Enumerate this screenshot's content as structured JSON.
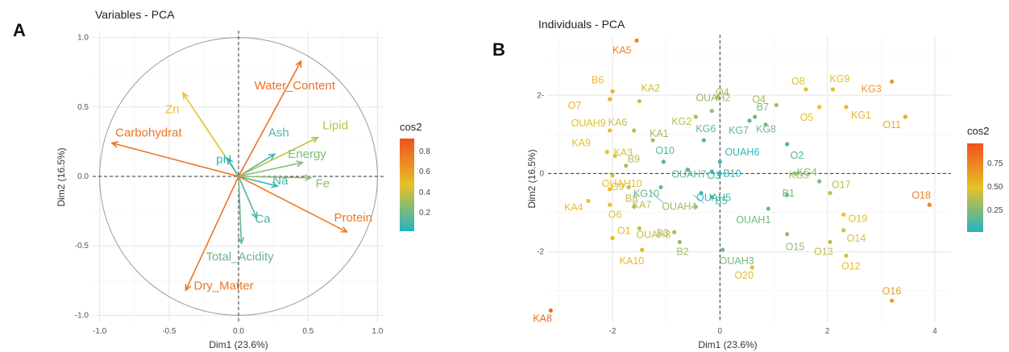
{
  "chart_data": [
    {
      "type": "scatter",
      "panel": "A",
      "title": "Variables - PCA",
      "xlabel": "Dim1 (23.6%)",
      "ylabel": "Dim2 (16.5%)",
      "xlim": [
        -1.05,
        1.05
      ],
      "ylim": [
        -1.05,
        1.05
      ],
      "xticks": [
        "-1.0",
        "-0.5",
        "0.0",
        "0.5",
        "1.0"
      ],
      "yticks": [
        "1.0",
        "0.5",
        "0.0",
        "-0.5",
        "-1.0"
      ],
      "grid": true,
      "legend": {
        "title": "cos2",
        "ticks": [
          "0.8",
          "0.6",
          "0.4",
          "0.2"
        ],
        "position": "right"
      },
      "colors": {
        "low": "#22b3c4",
        "mid": "#e6c229",
        "high": "#f2501f"
      },
      "variables": [
        {
          "name": "Water_Content",
          "x": 0.45,
          "y": 0.83,
          "cos2": 0.86
        },
        {
          "name": "Zn",
          "x": -0.4,
          "y": 0.6,
          "cos2": 0.5
        },
        {
          "name": "Carbohydrat",
          "x": -0.91,
          "y": 0.24,
          "cos2": 0.85
        },
        {
          "name": "pH",
          "x": -0.08,
          "y": 0.13,
          "cos2": 0.02
        },
        {
          "name": "Ash",
          "x": 0.26,
          "y": 0.16,
          "cos2": 0.1
        },
        {
          "name": "Lipid",
          "x": 0.57,
          "y": 0.28,
          "cos2": 0.4
        },
        {
          "name": "Energy",
          "x": 0.46,
          "y": 0.1,
          "cos2": 0.24
        },
        {
          "name": "Na",
          "x": 0.28,
          "y": -0.07,
          "cos2": 0.08
        },
        {
          "name": "Fe",
          "x": 0.52,
          "y": -0.01,
          "cos2": 0.28
        },
        {
          "name": "Ca",
          "x": 0.13,
          "y": -0.3,
          "cos2": 0.11
        },
        {
          "name": "Total_Acidity",
          "x": 0.02,
          "y": -0.48,
          "cos2": 0.17
        },
        {
          "name": "Protein",
          "x": 0.78,
          "y": -0.4,
          "cos2": 0.81
        },
        {
          "name": "Dry_Matter",
          "x": -0.38,
          "y": -0.82,
          "cos2": 0.84
        }
      ]
    },
    {
      "type": "scatter",
      "panel": "B",
      "title": "Individuals - PCA",
      "xlabel": "Dim1 (23.6%)",
      "ylabel": "Dim2 (16.5%)",
      "xlim": [
        -3.2,
        4.3
      ],
      "ylim": [
        -3.8,
        3.55
      ],
      "xticks": [
        "-2",
        "0",
        "2",
        "4"
      ],
      "yticks": [
        "2-",
        "0",
        "-2"
      ],
      "grid": true,
      "legend": {
        "title": "cos2",
        "ticks": [
          "0.75",
          "0.50",
          "0.25"
        ],
        "position": "right"
      },
      "colors": {
        "low": "#22b3c4",
        "mid": "#e6c229",
        "high": "#f2501f"
      },
      "points": [
        {
          "label": "KA5",
          "x": -1.55,
          "y": 3.4,
          "cos2": 0.78
        },
        {
          "label": "O8",
          "x": 1.6,
          "y": 2.15,
          "cos2": 0.48
        },
        {
          "label": "KG9",
          "x": 2.1,
          "y": 2.15,
          "cos2": 0.52
        },
        {
          "label": "KG3",
          "x": 3.2,
          "y": 2.35,
          "cos2": 0.68
        },
        {
          "label": "B6",
          "x": -2.0,
          "y": 2.1,
          "cos2": 0.55
        },
        {
          "label": "O7",
          "x": -2.05,
          "y": 1.9,
          "cos2": 0.56
        },
        {
          "label": "KA2",
          "x": -1.5,
          "y": 1.85,
          "cos2": 0.42
        },
        {
          "label": "O4_B",
          "x": -0.05,
          "y": 1.95,
          "cos2": 0.35
        },
        {
          "label": "O4",
          "x": 1.05,
          "y": 1.75,
          "cos2": 0.33
        },
        {
          "label": "B7",
          "x": 0.65,
          "y": 1.45,
          "cos2": 0.2
        },
        {
          "label": "OUAH2",
          "x": -0.15,
          "y": 1.6,
          "cos2": 0.3
        },
        {
          "label": "KG2",
          "x": -0.45,
          "y": 1.45,
          "cos2": 0.38
        },
        {
          "label": "O5",
          "x": 1.85,
          "y": 1.7,
          "cos2": 0.5
        },
        {
          "label": "KG1",
          "x": 2.35,
          "y": 1.7,
          "cos2": 0.55
        },
        {
          "label": "O11",
          "x": 3.45,
          "y": 1.45,
          "cos2": 0.6
        },
        {
          "label": "OUAH9",
          "x": -2.05,
          "y": 1.1,
          "cos2": 0.48
        },
        {
          "label": "KA6",
          "x": -1.6,
          "y": 1.1,
          "cos2": 0.42
        },
        {
          "label": "KG7",
          "x": 0.55,
          "y": 1.35,
          "cos2": 0.18
        },
        {
          "label": "KG8",
          "x": 0.85,
          "y": 1.25,
          "cos2": 0.22
        },
        {
          "label": "KA1",
          "x": -1.25,
          "y": 0.85,
          "cos2": 0.33
        },
        {
          "label": "KG6",
          "x": -0.3,
          "y": 0.85,
          "cos2": 0.15
        },
        {
          "label": "O2",
          "x": 1.25,
          "y": 0.75,
          "cos2": 0.1
        },
        {
          "label": "KA9",
          "x": -2.1,
          "y": 0.55,
          "cos2": 0.5
        },
        {
          "label": "KA3",
          "x": -1.95,
          "y": 0.45,
          "cos2": 0.46
        },
        {
          "label": "O10",
          "x": -1.05,
          "y": 0.3,
          "cos2": 0.12
        },
        {
          "label": "OUAH6",
          "x": 0.0,
          "y": 0.3,
          "cos2": 0.05
        },
        {
          "label": "B9",
          "x": -1.75,
          "y": 0.2,
          "cos2": 0.36
        },
        {
          "label": "OUAH7",
          "x": -0.6,
          "y": 0.1,
          "cos2": 0.14
        },
        {
          "label": "O3",
          "x": -0.15,
          "y": 0.05,
          "cos2": 0.08
        },
        {
          "label": "B10",
          "x": 0.0,
          "y": 0.0,
          "cos2": 0.05
        },
        {
          "label": "KG5",
          "x": 1.4,
          "y": 0.0,
          "cos2": 0.32
        },
        {
          "label": "KG4",
          "x": 1.85,
          "y": -0.2,
          "cos2": 0.24
        },
        {
          "label": "OUAH10",
          "x": -2.05,
          "y": -0.4,
          "cos2": 0.52
        },
        {
          "label": "O9",
          "x": -2.0,
          "y": -0.05,
          "cos2": 0.45
        },
        {
          "label": "B8",
          "x": -1.7,
          "y": -0.35,
          "cos2": 0.4
        },
        {
          "label": "KG10",
          "x": -1.1,
          "y": -0.35,
          "cos2": 0.16
        },
        {
          "label": "OUAH5",
          "x": -0.35,
          "y": -0.5,
          "cos2": 0.05
        },
        {
          "label": "B5",
          "x": -0.15,
          "y": -0.6,
          "cos2": 0.12
        },
        {
          "label": "B1",
          "x": 1.25,
          "y": -0.55,
          "cos2": 0.2
        },
        {
          "label": "O17",
          "x": 2.05,
          "y": -0.5,
          "cos2": 0.4
        },
        {
          "label": "O18",
          "x": 3.9,
          "y": -0.8,
          "cos2": 0.78
        },
        {
          "label": "KA4",
          "x": -2.45,
          "y": -0.7,
          "cos2": 0.5
        },
        {
          "label": "O6",
          "x": -2.05,
          "y": -0.8,
          "cos2": 0.48
        },
        {
          "label": "KA7",
          "x": -1.6,
          "y": -0.85,
          "cos2": 0.38
        },
        {
          "label": "OUAH4",
          "x": -0.45,
          "y": -0.85,
          "cos2": 0.3
        },
        {
          "label": "OUAH1",
          "x": 0.9,
          "y": -0.9,
          "cos2": 0.2
        },
        {
          "label": "O19",
          "x": 2.3,
          "y": -1.05,
          "cos2": 0.5
        },
        {
          "label": "O1",
          "x": -2.0,
          "y": -1.65,
          "cos2": 0.55
        },
        {
          "label": "OUAH8",
          "x": -1.5,
          "y": -1.4,
          "cos2": 0.42
        },
        {
          "label": "B3",
          "x": -0.85,
          "y": -1.5,
          "cos2": 0.36
        },
        {
          "label": "O15",
          "x": 1.25,
          "y": -1.55,
          "cos2": 0.28
        },
        {
          "label": "O14",
          "x": 2.3,
          "y": -1.45,
          "cos2": 0.45
        },
        {
          "label": "O13",
          "x": 2.05,
          "y": -1.75,
          "cos2": 0.4
        },
        {
          "label": "B2",
          "x": -0.75,
          "y": -1.75,
          "cos2": 0.3
        },
        {
          "label": "KA10",
          "x": -1.45,
          "y": -1.95,
          "cos2": 0.55
        },
        {
          "label": "OUAH3",
          "x": 0.05,
          "y": -1.95,
          "cos2": 0.22
        },
        {
          "label": "O12",
          "x": 2.35,
          "y": -2.1,
          "cos2": 0.52
        },
        {
          "label": "O20",
          "x": 0.6,
          "y": -2.4,
          "cos2": 0.48
        },
        {
          "label": "O16",
          "x": 3.2,
          "y": -3.25,
          "cos2": 0.66
        },
        {
          "label": "KA8",
          "x": -3.15,
          "y": -3.5,
          "cos2": 0.88
        }
      ]
    }
  ],
  "panel_labels": {
    "a": "A",
    "b": "B"
  },
  "titles": {
    "a": "Variables - PCA",
    "b": "Individuals - PCA"
  },
  "axis_labels": {
    "a_x": "Dim1 (23.6%)",
    "a_y": "Dim2 (16.5%)",
    "b_x": "Dim1 (23.6%)",
    "b_y": "Dim2 (16.5%)"
  },
  "legend": {
    "a_title": "cos2",
    "a_ticks": [
      "0.8",
      "0.6",
      "0.4",
      "0.2"
    ],
    "b_title": "cos2",
    "b_ticks": [
      "0.75",
      "0.50",
      "0.25"
    ]
  },
  "ticks": {
    "a_x": [
      "-1.0",
      "-0.5",
      "0.0",
      "0.5",
      "1.0"
    ],
    "a_y": [
      "1.0",
      "0.5",
      "0.0",
      "-0.5",
      "-1.0"
    ],
    "b_x": [
      "-2",
      "0",
      "2",
      "4"
    ],
    "b_y": [
      "2-",
      "0",
      "-2"
    ]
  }
}
